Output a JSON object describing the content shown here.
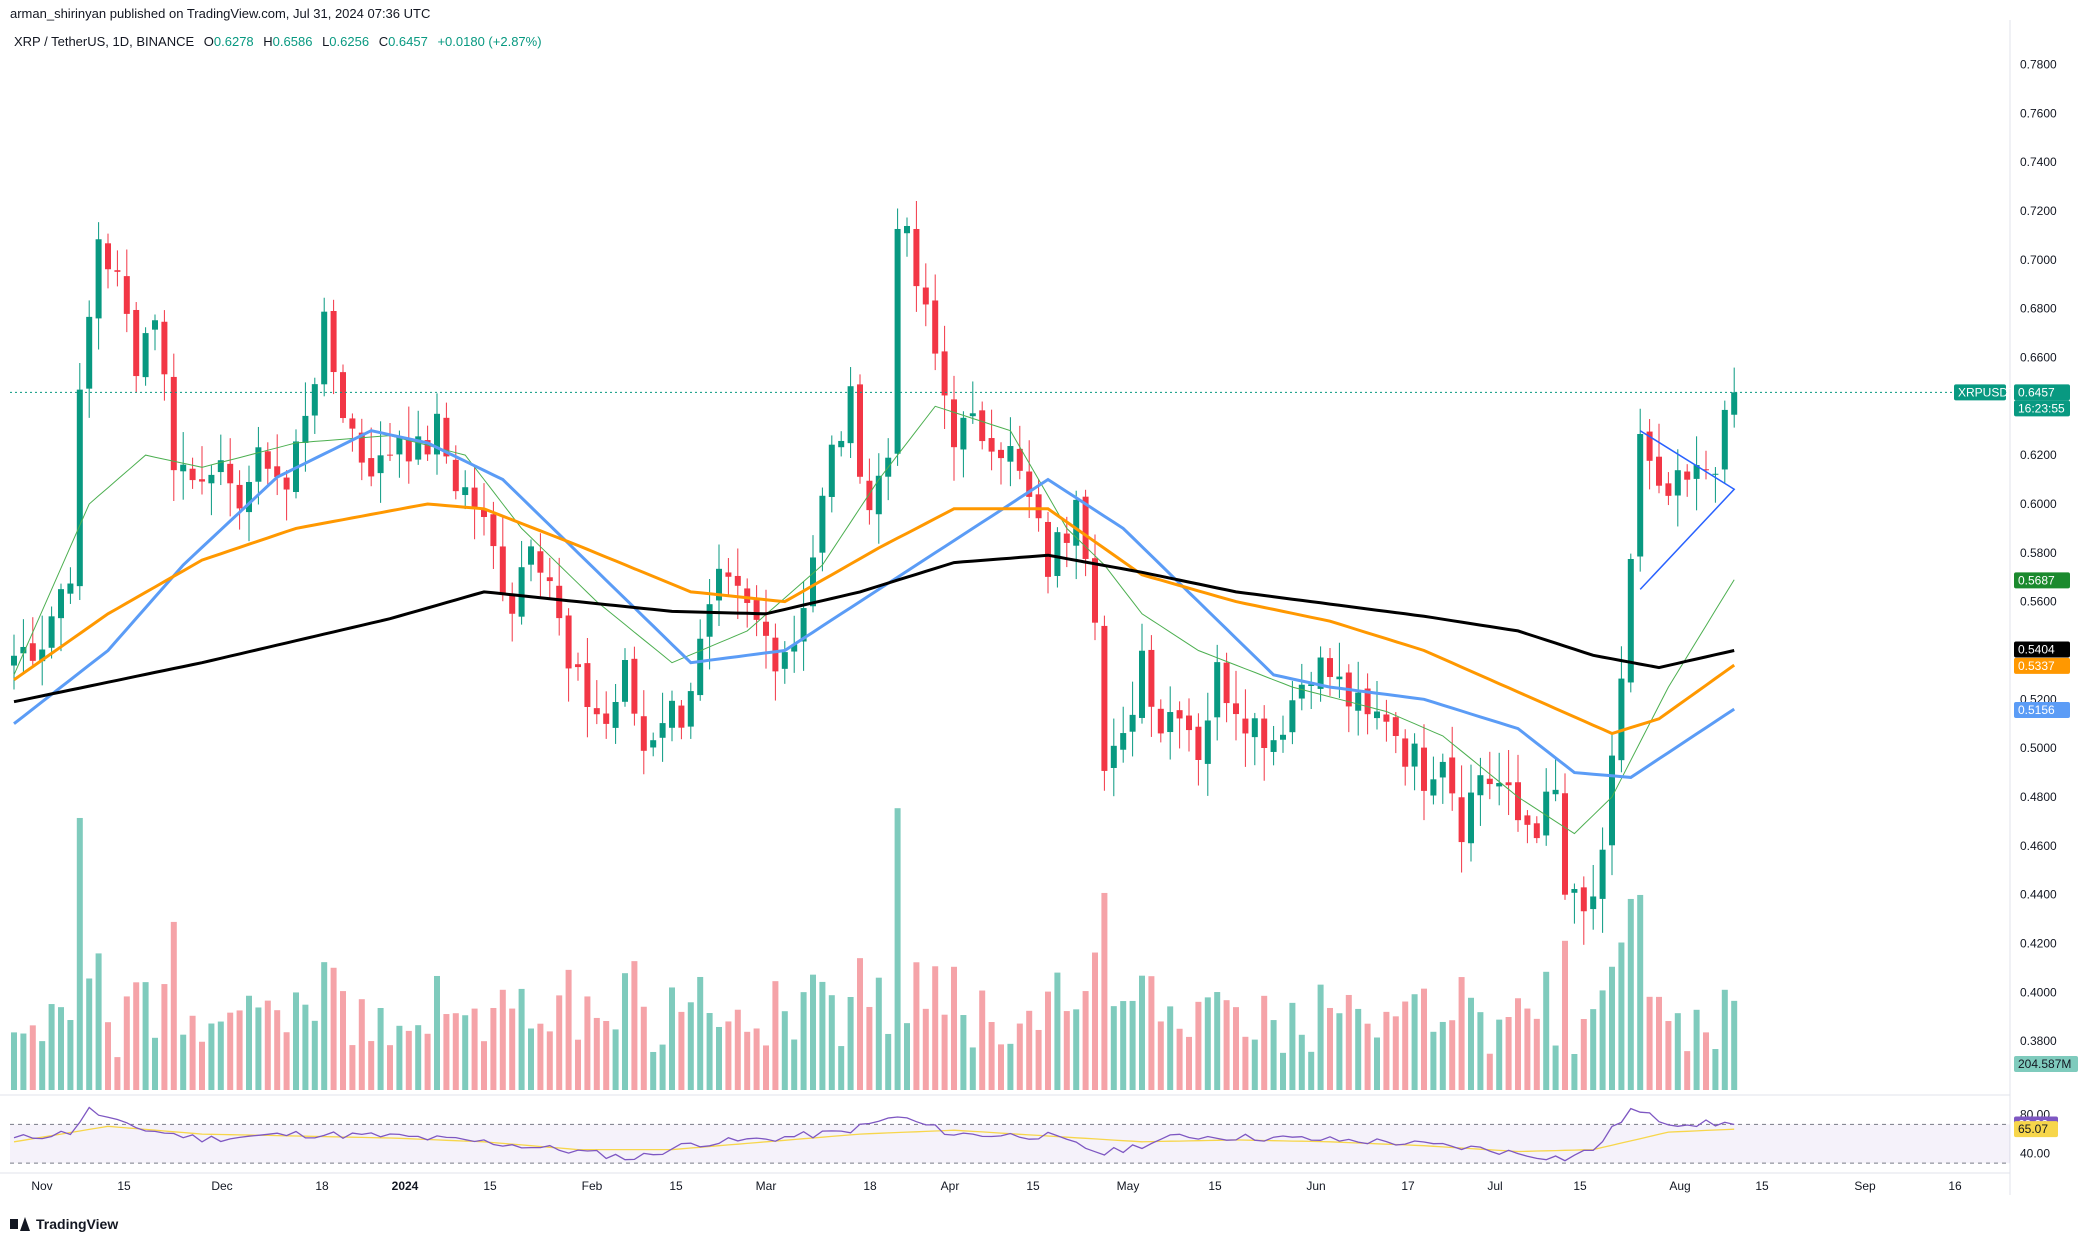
{
  "header": {
    "publisher": "arman_shirinyan published on TradingView.com, Jul 31, 2024 07:36 UTC"
  },
  "symbol_line": {
    "name": "XRP / TetherUS, 1D, BINANCE",
    "o_label": "O",
    "o_value": "0.6278",
    "h_label": "H",
    "h_value": "0.6586",
    "l_label": "L",
    "l_value": "0.6256",
    "c_label": "C",
    "c_value": "0.6457",
    "change": "+0.0180 (+2.87%)"
  },
  "footer": {
    "brand": "TradingView"
  },
  "colors": {
    "up": "#089981",
    "down": "#f23645",
    "up_volume": "#7fcbbd",
    "down_volume": "#f5a3a8",
    "ma_fast": "#4caf50",
    "ma_blue": "#5b9cf6",
    "ma_orange": "#ff9800",
    "ma_black": "#000000",
    "rsi": "#7e57c2",
    "rsi_ma": "#f7d64b",
    "triangle": "#2962ff"
  },
  "chart_data": [
    {
      "type": "candlestick",
      "symbol": "XRPUSDT",
      "ylim": [
        0.36,
        0.79
      ],
      "y_ticks": [
        "0.7800",
        "0.7600",
        "0.7400",
        "0.7200",
        "0.7000",
        "0.6800",
        "0.6600",
        "0.6400",
        "0.6200",
        "0.6000",
        "0.5800",
        "0.5600",
        "0.5400",
        "0.5200",
        "0.5000",
        "0.4800",
        "0.4600",
        "0.4400",
        "0.4200",
        "0.4000",
        "0.3800"
      ],
      "x_ticks": [
        "Nov",
        "15",
        "Dec",
        "18",
        "2024",
        "15",
        "Feb",
        "15",
        "Mar",
        "18",
        "Apr",
        "15",
        "May",
        "15",
        "Jun",
        "17",
        "Jul",
        "15",
        "Aug",
        "15",
        "Sep",
        "16"
      ],
      "anchors": [
        [
          0,
          0.538
        ],
        [
          3,
          0.545
        ],
        [
          6,
          0.575
        ],
        [
          7,
          0.64
        ],
        [
          9,
          0.71
        ],
        [
          11,
          0.69
        ],
        [
          13,
          0.66
        ],
        [
          15,
          0.68
        ],
        [
          17,
          0.62
        ],
        [
          19,
          0.61
        ],
        [
          21,
          0.62
        ],
        [
          23,
          0.6
        ],
        [
          25,
          0.61
        ],
        [
          27,
          0.62
        ],
        [
          29,
          0.605
        ],
        [
          31,
          0.64
        ],
        [
          33,
          0.67
        ],
        [
          35,
          0.64
        ],
        [
          37,
          0.62
        ],
        [
          39,
          0.615
        ],
        [
          41,
          0.63
        ],
        [
          43,
          0.62
        ],
        [
          45,
          0.63
        ],
        [
          47,
          0.61
        ],
        [
          49,
          0.6
        ],
        [
          51,
          0.58
        ],
        [
          53,
          0.56
        ],
        [
          55,
          0.59
        ],
        [
          57,
          0.57
        ],
        [
          59,
          0.53
        ],
        [
          61,
          0.52
        ],
        [
          63,
          0.51
        ],
        [
          65,
          0.53
        ],
        [
          67,
          0.5
        ],
        [
          69,
          0.515
        ],
        [
          71,
          0.515
        ],
        [
          73,
          0.54
        ],
        [
          75,
          0.565
        ],
        [
          77,
          0.56
        ],
        [
          79,
          0.55
        ],
        [
          81,
          0.54
        ],
        [
          83,
          0.545
        ],
        [
          85,
          0.58
        ],
        [
          87,
          0.62
        ],
        [
          89,
          0.64
        ],
        [
          91,
          0.6
        ],
        [
          93,
          0.62
        ],
        [
          94,
          0.72
        ],
        [
          96,
          0.69
        ],
        [
          98,
          0.66
        ],
        [
          100,
          0.63
        ],
        [
          102,
          0.63
        ],
        [
          104,
          0.63
        ],
        [
          106,
          0.62
        ],
        [
          108,
          0.6
        ],
        [
          110,
          0.575
        ],
        [
          112,
          0.59
        ],
        [
          113,
          0.61
        ],
        [
          115,
          0.56
        ],
        [
          116,
          0.49
        ],
        [
          118,
          0.5
        ],
        [
          120,
          0.54
        ],
        [
          122,
          0.51
        ],
        [
          124,
          0.52
        ],
        [
          126,
          0.5
        ],
        [
          128,
          0.53
        ],
        [
          130,
          0.52
        ],
        [
          132,
          0.51
        ],
        [
          134,
          0.505
        ],
        [
          136,
          0.52
        ],
        [
          138,
          0.535
        ],
        [
          140,
          0.53
        ],
        [
          142,
          0.52
        ],
        [
          144,
          0.51
        ],
        [
          146,
          0.515
        ],
        [
          148,
          0.5
        ],
        [
          150,
          0.49
        ],
        [
          152,
          0.5
        ],
        [
          154,
          0.47
        ],
        [
          156,
          0.49
        ],
        [
          158,
          0.485
        ],
        [
          160,
          0.47
        ],
        [
          162,
          0.47
        ],
        [
          164,
          0.48
        ],
        [
          165,
          0.44
        ],
        [
          167,
          0.43
        ],
        [
          169,
          0.45
        ],
        [
          171,
          0.53
        ],
        [
          173,
          0.625
        ],
        [
          175,
          0.6
        ],
        [
          177,
          0.605
        ],
        [
          179,
          0.61
        ],
        [
          181,
          0.62
        ],
        [
          182,
          0.63
        ],
        [
          183,
          0.6457
        ]
      ],
      "last_price": "0.6457",
      "countdown": "16:23:55",
      "symbol_label": "XRPUSDT",
      "ma_values": {
        "ma_fast": "0.5687",
        "ma_black": "0.5404",
        "ma_orange": "0.5337",
        "ma_blue": "0.5156"
      },
      "moving_averages": {
        "ma_black": [
          [
            0,
            0.519
          ],
          [
            20,
            0.535
          ],
          [
            40,
            0.553
          ],
          [
            50,
            0.564
          ],
          [
            60,
            0.56
          ],
          [
            70,
            0.556
          ],
          [
            80,
            0.555
          ],
          [
            90,
            0.564
          ],
          [
            100,
            0.576
          ],
          [
            110,
            0.579
          ],
          [
            120,
            0.572
          ],
          [
            130,
            0.564
          ],
          [
            140,
            0.559
          ],
          [
            150,
            0.554
          ],
          [
            160,
            0.548
          ],
          [
            168,
            0.538
          ],
          [
            175,
            0.533
          ],
          [
            183,
            0.54
          ]
        ],
        "ma_orange": [
          [
            0,
            0.528
          ],
          [
            10,
            0.555
          ],
          [
            20,
            0.577
          ],
          [
            30,
            0.59
          ],
          [
            44,
            0.6
          ],
          [
            50,
            0.598
          ],
          [
            60,
            0.583
          ],
          [
            72,
            0.564
          ],
          [
            82,
            0.56
          ],
          [
            92,
            0.582
          ],
          [
            100,
            0.598
          ],
          [
            110,
            0.598
          ],
          [
            120,
            0.571
          ],
          [
            130,
            0.56
          ],
          [
            140,
            0.552
          ],
          [
            150,
            0.54
          ],
          [
            160,
            0.523
          ],
          [
            170,
            0.506
          ],
          [
            175,
            0.512
          ],
          [
            183,
            0.534
          ]
        ],
        "ma_blue": [
          [
            0,
            0.51
          ],
          [
            10,
            0.54
          ],
          [
            18,
            0.575
          ],
          [
            28,
            0.611
          ],
          [
            38,
            0.63
          ],
          [
            44,
            0.625
          ],
          [
            52,
            0.61
          ],
          [
            60,
            0.58
          ],
          [
            72,
            0.535
          ],
          [
            82,
            0.54
          ],
          [
            92,
            0.565
          ],
          [
            100,
            0.585
          ],
          [
            110,
            0.61
          ],
          [
            118,
            0.59
          ],
          [
            126,
            0.56
          ],
          [
            134,
            0.53
          ],
          [
            140,
            0.525
          ],
          [
            150,
            0.52
          ],
          [
            160,
            0.508
          ],
          [
            166,
            0.49
          ],
          [
            172,
            0.488
          ],
          [
            183,
            0.516
          ]
        ],
        "ma_fast": [
          [
            0,
            0.53
          ],
          [
            8,
            0.6
          ],
          [
            14,
            0.62
          ],
          [
            20,
            0.615
          ],
          [
            30,
            0.625
          ],
          [
            40,
            0.628
          ],
          [
            48,
            0.62
          ],
          [
            54,
            0.59
          ],
          [
            62,
            0.56
          ],
          [
            70,
            0.535
          ],
          [
            78,
            0.548
          ],
          [
            86,
            0.575
          ],
          [
            92,
            0.61
          ],
          [
            98,
            0.64
          ],
          [
            106,
            0.63
          ],
          [
            112,
            0.59
          ],
          [
            116,
            0.575
          ],
          [
            120,
            0.555
          ],
          [
            126,
            0.54
          ],
          [
            136,
            0.525
          ],
          [
            146,
            0.515
          ],
          [
            152,
            0.505
          ],
          [
            160,
            0.48
          ],
          [
            166,
            0.465
          ],
          [
            170,
            0.48
          ],
          [
            176,
            0.525
          ],
          [
            183,
            0.569
          ]
        ]
      },
      "triangle": [
        [
          173,
          0.63
        ],
        [
          183,
          0.606
        ],
        [
          173,
          0.565
        ]
      ]
    },
    {
      "type": "bar",
      "title": "Volume",
      "last_value": "204.587M"
    },
    {
      "type": "line",
      "title": "RSI",
      "ylim": [
        25,
        90
      ],
      "y_ticks": [
        "80.00",
        "40.00"
      ],
      "levels": [
        70,
        30
      ],
      "rsi_value": "69.92",
      "rsi_ma_value": "65.07",
      "rsi": [
        [
          0,
          55
        ],
        [
          6,
          62
        ],
        [
          8,
          85
        ],
        [
          12,
          68
        ],
        [
          20,
          55
        ],
        [
          30,
          60
        ],
        [
          40,
          58
        ],
        [
          50,
          52
        ],
        [
          60,
          42
        ],
        [
          66,
          35
        ],
        [
          72,
          50
        ],
        [
          80,
          55
        ],
        [
          88,
          62
        ],
        [
          94,
          78
        ],
        [
          100,
          60
        ],
        [
          110,
          58
        ],
        [
          116,
          40
        ],
        [
          124,
          58
        ],
        [
          134,
          56
        ],
        [
          146,
          52
        ],
        [
          156,
          45
        ],
        [
          160,
          40
        ],
        [
          165,
          35
        ],
        [
          168,
          44
        ],
        [
          172,
          85
        ],
        [
          176,
          72
        ],
        [
          183,
          69.92
        ]
      ],
      "rsi_ma": [
        [
          0,
          52
        ],
        [
          10,
          68
        ],
        [
          20,
          60
        ],
        [
          30,
          58
        ],
        [
          40,
          56
        ],
        [
          50,
          52
        ],
        [
          60,
          44
        ],
        [
          70,
          44
        ],
        [
          80,
          52
        ],
        [
          90,
          60
        ],
        [
          100,
          64
        ],
        [
          110,
          58
        ],
        [
          120,
          52
        ],
        [
          130,
          54
        ],
        [
          140,
          52
        ],
        [
          150,
          48
        ],
        [
          160,
          42
        ],
        [
          168,
          44
        ],
        [
          176,
          62
        ],
        [
          183,
          65.07
        ]
      ]
    }
  ]
}
